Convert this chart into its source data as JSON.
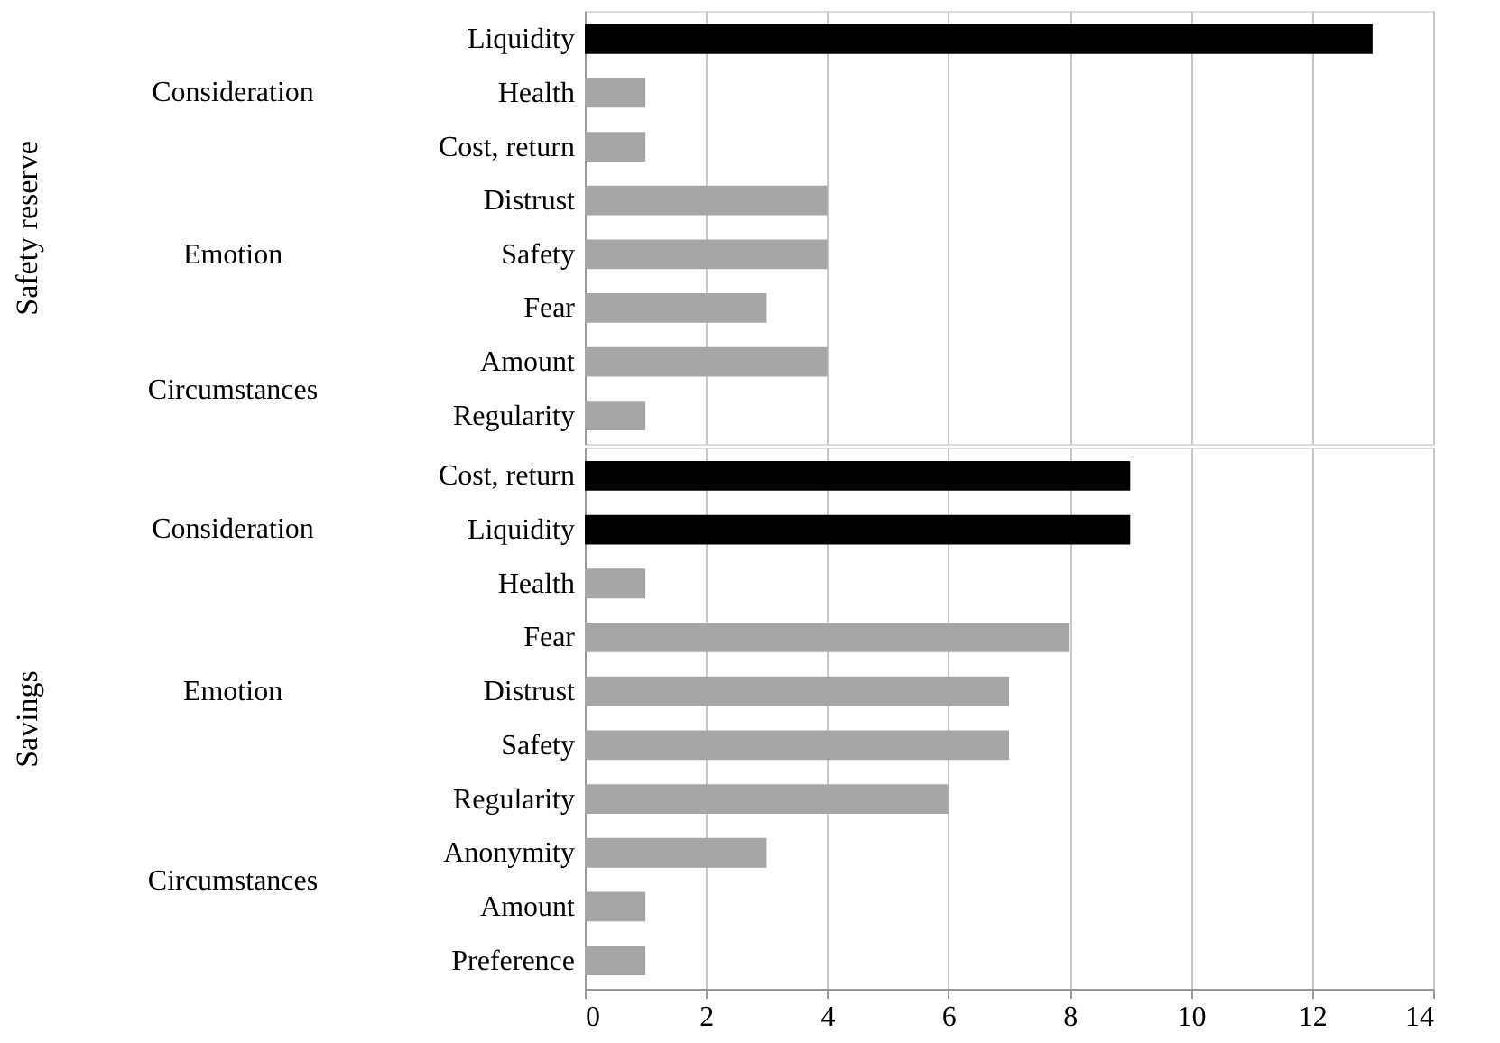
{
  "chart_data": [
    {
      "type": "bar",
      "orientation": "horizontal",
      "ylabel": "Safety reserve",
      "tick_labels": "y",
      "grid": "x",
      "categories": [
        "Liquidity",
        "Health",
        "Cost, return",
        "Distrust",
        "Safety",
        "Fear",
        "Amount",
        "Regularity"
      ],
      "values": [
        13,
        1,
        1,
        4,
        4,
        3,
        4,
        1
      ],
      "colors": [
        "#000000",
        "#a6a6a6",
        "#a6a6a6",
        "#a6a6a6",
        "#a6a6a6",
        "#a6a6a6",
        "#a6a6a6",
        "#a6a6a6"
      ],
      "xlim": [
        0,
        14
      ],
      "xticks": [
        0,
        2,
        4,
        6,
        8,
        10,
        12,
        14
      ],
      "annotations": [
        "Consideration",
        "Emotion",
        "Circumstances"
      ]
    },
    {
      "type": "bar",
      "orientation": "horizontal",
      "ylabel": "Savings",
      "grid": "x",
      "categories": [
        "Cost, return",
        "Liquidity",
        "Health",
        "Fear",
        "Distrust",
        "Safety",
        "Regularity",
        "Anonymity",
        "Amount",
        "Preference"
      ],
      "values": [
        9,
        9,
        1,
        8,
        7,
        7,
        6,
        3,
        1,
        1
      ],
      "colors": [
        "#000000",
        "#000000",
        "#a6a6a6",
        "#a6a6a6",
        "#a6a6a6",
        "#a6a6a6",
        "#a6a6a6",
        "#a6a6a6",
        "#a6a6a6",
        "#a6a6a6"
      ],
      "xlim": [
        0,
        14
      ],
      "xticks": [
        0,
        2,
        4,
        6,
        8,
        10,
        12,
        14
      ],
      "annotations": [
        "Consideration",
        "Emotion",
        "Circumstances"
      ]
    }
  ]
}
